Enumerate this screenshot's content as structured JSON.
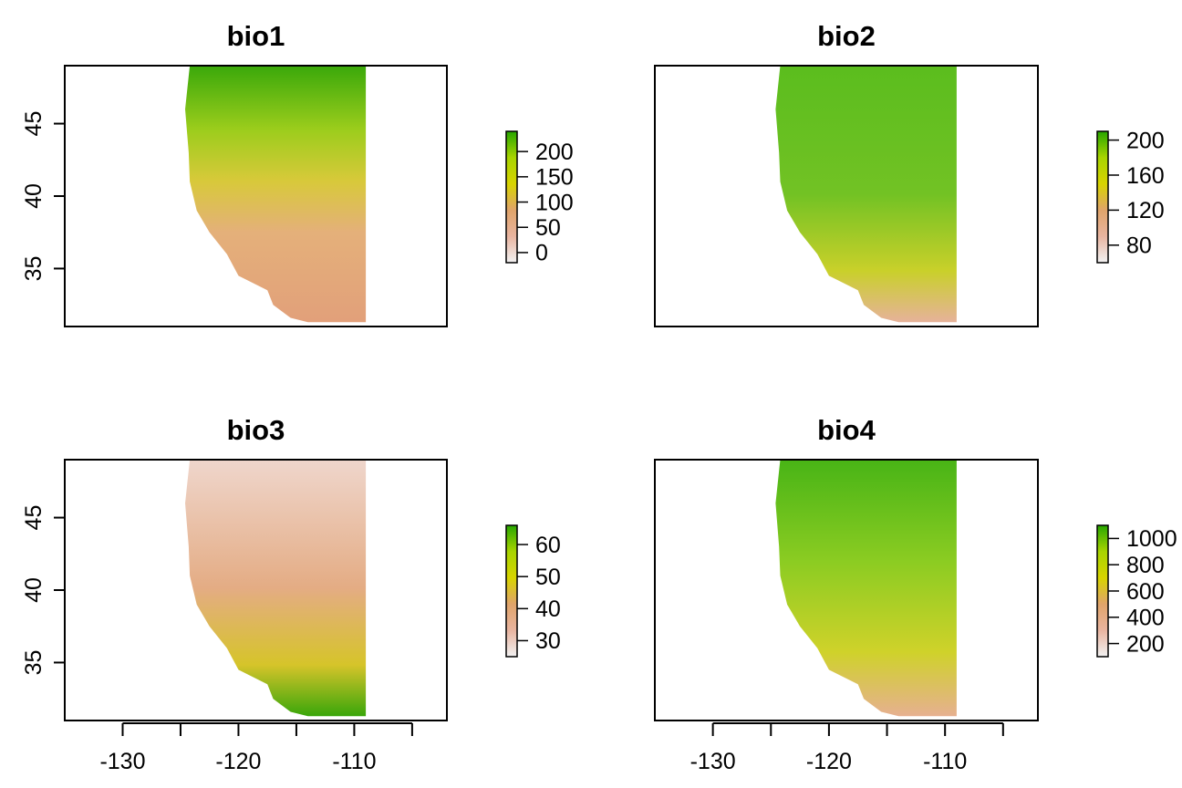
{
  "panels": [
    {
      "title": "bio1",
      "show_y_axis": true,
      "show_x_axis": false,
      "legend_ticks": [
        "200",
        "150",
        "100",
        "50",
        "0"
      ],
      "legend_values": [
        200,
        150,
        100,
        50,
        0
      ],
      "legend_range": [
        -20,
        240
      ],
      "palette": "temperature"
    },
    {
      "title": "bio2",
      "show_y_axis": false,
      "show_x_axis": false,
      "legend_ticks": [
        "200",
        "160",
        "120",
        "80"
      ],
      "legend_values": [
        200,
        160,
        120,
        80
      ],
      "legend_range": [
        60,
        210
      ],
      "palette": "diurnal"
    },
    {
      "title": "bio3",
      "show_y_axis": true,
      "show_x_axis": true,
      "legend_ticks": [
        "60",
        "50",
        "40",
        "30"
      ],
      "legend_values": [
        60,
        50,
        40,
        30
      ],
      "legend_range": [
        25,
        66
      ],
      "palette": "isothermality"
    },
    {
      "title": "bio4",
      "show_y_axis": false,
      "show_x_axis": true,
      "legend_ticks": [
        "1000",
        "800",
        "600",
        "400",
        "200"
      ],
      "legend_values": [
        1000,
        800,
        600,
        400,
        200
      ],
      "legend_range": [
        100,
        1100
      ],
      "palette": "seasonality"
    }
  ],
  "x_axis": {
    "range": [
      -135,
      -102
    ],
    "ticks": [
      -130,
      -125,
      -120,
      -115,
      -110,
      -105
    ],
    "labels": [
      "-130",
      "",
      "-120",
      "",
      "-110",
      ""
    ]
  },
  "y_axis": {
    "range": [
      31,
      49
    ],
    "ticks": [
      35,
      40,
      45
    ],
    "labels": [
      "35",
      "40",
      "45"
    ]
  },
  "colors": {
    "low": "#f2f2f2",
    "pink": "#e8b4a0",
    "tan": "#e0a46a",
    "yellow": "#d8d400",
    "lime": "#a8d400",
    "green": "#27a600",
    "frame": "#000000"
  }
}
